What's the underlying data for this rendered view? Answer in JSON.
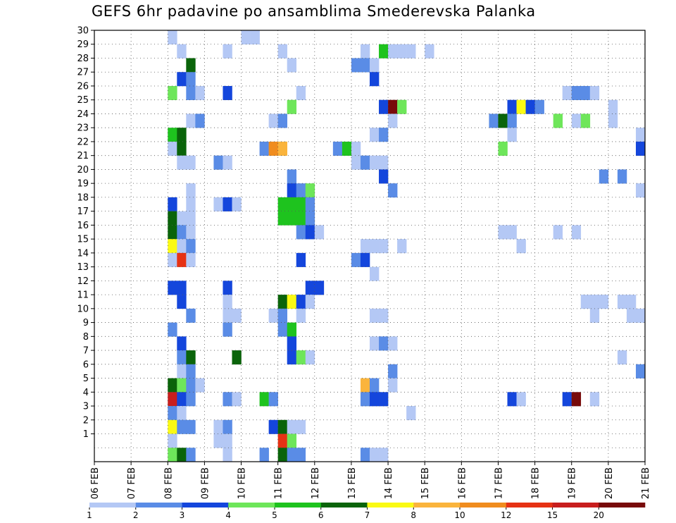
{
  "chart_data": {
    "type": "heatmap",
    "title": "GEFS 6hr padavine po ansamblima Smederevska Palanka",
    "y_members": [
      30,
      29,
      28,
      27,
      26,
      25,
      24,
      23,
      22,
      21,
      20,
      19,
      18,
      17,
      16,
      15,
      14,
      13,
      12,
      11,
      10,
      9,
      8,
      7,
      6,
      5,
      4,
      3,
      2,
      1,
      0
    ],
    "y_tick_labels": [
      "30",
      "29",
      "28",
      "27",
      "26",
      "25",
      "24",
      "23",
      "22",
      "21",
      "20",
      "19",
      "18",
      "17",
      "16",
      "15",
      "14",
      "13",
      "12",
      "11",
      "10",
      "9",
      "8",
      "7",
      "6",
      "5",
      "4",
      "3",
      "2",
      "1"
    ],
    "x_start_date": "06 FEB",
    "x_tick_labels": [
      "06 FEB",
      "07 FEB",
      "08 FEB",
      "09 FEB",
      "10 FEB",
      "11 FEB",
      "12 FEB",
      "13 FEB",
      "14 FEB",
      "15 FEB",
      "16 FEB",
      "17 FEB",
      "18 FEB",
      "19 FEB",
      "20 FEB",
      "21 FEB"
    ],
    "steps_per_day": 4,
    "grid": true,
    "legend_position": "bottom",
    "legend_levels": [
      1,
      2,
      3,
      4,
      5,
      6,
      7,
      8,
      10,
      12,
      15,
      20
    ],
    "legend_labels": [
      "1",
      "2",
      "3",
      "4",
      "5",
      "6",
      "7",
      "8",
      "10",
      "12",
      "15",
      "20"
    ],
    "colors": [
      "#b4c8f5",
      "#5a8ce6",
      "#1446dc",
      "#6ee65a",
      "#1ec31e",
      "#0a640a",
      "#fafa14",
      "#fab43c",
      "#f08c1e",
      "#e63214",
      "#c81e1e",
      "#780a0a"
    ],
    "cells": [
      {
        "member": 30,
        "step": 8,
        "level": 1
      },
      {
        "member": 30,
        "step": 16,
        "level": 1
      },
      {
        "member": 30,
        "step": 17,
        "level": 1
      },
      {
        "member": 29,
        "step": 9,
        "level": 1
      },
      {
        "member": 29,
        "step": 14,
        "level": 1
      },
      {
        "member": 29,
        "step": 20,
        "level": 1
      },
      {
        "member": 29,
        "step": 29,
        "level": 1
      },
      {
        "member": 29,
        "step": 31,
        "level": 5
      },
      {
        "member": 29,
        "step": 32,
        "level": 1
      },
      {
        "member": 29,
        "step": 33,
        "level": 1
      },
      {
        "member": 29,
        "step": 34,
        "level": 1
      },
      {
        "member": 29,
        "step": 36,
        "level": 1
      },
      {
        "member": 28,
        "step": 10,
        "level": 6
      },
      {
        "member": 28,
        "step": 21,
        "level": 1
      },
      {
        "member": 28,
        "step": 28,
        "level": 2
      },
      {
        "member": 28,
        "step": 29,
        "level": 2
      },
      {
        "member": 28,
        "step": 30,
        "level": 1
      },
      {
        "member": 27,
        "step": 9,
        "level": 3
      },
      {
        "member": 27,
        "step": 10,
        "level": 2
      },
      {
        "member": 27,
        "step": 30,
        "level": 3
      },
      {
        "member": 26,
        "step": 8,
        "level": 4
      },
      {
        "member": 26,
        "step": 10,
        "level": 2
      },
      {
        "member": 26,
        "step": 11,
        "level": 1
      },
      {
        "member": 26,
        "step": 14,
        "level": 3
      },
      {
        "member": 26,
        "step": 22,
        "level": 1
      },
      {
        "member": 26,
        "step": 51,
        "level": 1
      },
      {
        "member": 26,
        "step": 52,
        "level": 2
      },
      {
        "member": 26,
        "step": 53,
        "level": 2
      },
      {
        "member": 26,
        "step": 54,
        "level": 1
      },
      {
        "member": 25,
        "step": 21,
        "level": 4
      },
      {
        "member": 25,
        "step": 31,
        "level": 3
      },
      {
        "member": 25,
        "step": 32,
        "level": 12
      },
      {
        "member": 25,
        "step": 33,
        "level": 4
      },
      {
        "member": 25,
        "step": 45,
        "level": 3
      },
      {
        "member": 25,
        "step": 46,
        "level": 7
      },
      {
        "member": 25,
        "step": 47,
        "level": 3
      },
      {
        "member": 25,
        "step": 48,
        "level": 2
      },
      {
        "member": 25,
        "step": 56,
        "level": 1
      },
      {
        "member": 24,
        "step": 10,
        "level": 1
      },
      {
        "member": 24,
        "step": 11,
        "level": 2
      },
      {
        "member": 24,
        "step": 19,
        "level": 1
      },
      {
        "member": 24,
        "step": 20,
        "level": 2
      },
      {
        "member": 24,
        "step": 32,
        "level": 1
      },
      {
        "member": 24,
        "step": 43,
        "level": 2
      },
      {
        "member": 24,
        "step": 44,
        "level": 6
      },
      {
        "member": 24,
        "step": 45,
        "level": 2
      },
      {
        "member": 24,
        "step": 50,
        "level": 4
      },
      {
        "member": 24,
        "step": 52,
        "level": 1
      },
      {
        "member": 24,
        "step": 53,
        "level": 4
      },
      {
        "member": 24,
        "step": 56,
        "level": 1
      },
      {
        "member": 23,
        "step": 8,
        "level": 5
      },
      {
        "member": 23,
        "step": 9,
        "level": 6
      },
      {
        "member": 23,
        "step": 30,
        "level": 1
      },
      {
        "member": 23,
        "step": 31,
        "level": 2
      },
      {
        "member": 23,
        "step": 45,
        "level": 1
      },
      {
        "member": 23,
        "step": 59,
        "level": 1
      },
      {
        "member": 22,
        "step": 8,
        "level": 1
      },
      {
        "member": 22,
        "step": 9,
        "level": 6
      },
      {
        "member": 22,
        "step": 18,
        "level": 2
      },
      {
        "member": 22,
        "step": 19,
        "level": 9
      },
      {
        "member": 22,
        "step": 20,
        "level": 8
      },
      {
        "member": 22,
        "step": 26,
        "level": 2
      },
      {
        "member": 22,
        "step": 27,
        "level": 5
      },
      {
        "member": 22,
        "step": 28,
        "level": 1
      },
      {
        "member": 22,
        "step": 44,
        "level": 4
      },
      {
        "member": 22,
        "step": 59,
        "level": 3
      },
      {
        "member": 21,
        "step": 9,
        "level": 1
      },
      {
        "member": 21,
        "step": 10,
        "level": 1
      },
      {
        "member": 21,
        "step": 13,
        "level": 2
      },
      {
        "member": 21,
        "step": 14,
        "level": 1
      },
      {
        "member": 21,
        "step": 28,
        "level": 1
      },
      {
        "member": 21,
        "step": 29,
        "level": 2
      },
      {
        "member": 21,
        "step": 30,
        "level": 1
      },
      {
        "member": 21,
        "step": 31,
        "level": 1
      },
      {
        "member": 20,
        "step": 21,
        "level": 2
      },
      {
        "member": 20,
        "step": 31,
        "level": 3
      },
      {
        "member": 20,
        "step": 55,
        "level": 2
      },
      {
        "member": 20,
        "step": 57,
        "level": 2
      },
      {
        "member": 19,
        "step": 10,
        "level": 1
      },
      {
        "member": 19,
        "step": 21,
        "level": 3
      },
      {
        "member": 19,
        "step": 22,
        "level": 2
      },
      {
        "member": 19,
        "step": 23,
        "level": 4
      },
      {
        "member": 19,
        "step": 32,
        "level": 2
      },
      {
        "member": 19,
        "step": 59,
        "level": 1
      },
      {
        "member": 18,
        "step": 8,
        "level": 3
      },
      {
        "member": 18,
        "step": 10,
        "level": 1
      },
      {
        "member": 18,
        "step": 13,
        "level": 1
      },
      {
        "member": 18,
        "step": 14,
        "level": 3
      },
      {
        "member": 18,
        "step": 15,
        "level": 1
      },
      {
        "member": 18,
        "step": 20,
        "level": 5
      },
      {
        "member": 18,
        "step": 21,
        "level": 5
      },
      {
        "member": 18,
        "step": 22,
        "level": 5
      },
      {
        "member": 18,
        "step": 23,
        "level": 2
      },
      {
        "member": 17,
        "step": 8,
        "level": 6
      },
      {
        "member": 17,
        "step": 9,
        "level": 1
      },
      {
        "member": 17,
        "step": 10,
        "level": 1
      },
      {
        "member": 17,
        "step": 20,
        "level": 5
      },
      {
        "member": 17,
        "step": 21,
        "level": 5
      },
      {
        "member": 17,
        "step": 22,
        "level": 5
      },
      {
        "member": 17,
        "step": 23,
        "level": 2
      },
      {
        "member": 16,
        "step": 8,
        "level": 6
      },
      {
        "member": 16,
        "step": 9,
        "level": 2
      },
      {
        "member": 16,
        "step": 10,
        "level": 1
      },
      {
        "member": 16,
        "step": 22,
        "level": 2
      },
      {
        "member": 16,
        "step": 23,
        "level": 3
      },
      {
        "member": 16,
        "step": 24,
        "level": 1
      },
      {
        "member": 16,
        "step": 44,
        "level": 1
      },
      {
        "member": 16,
        "step": 45,
        "level": 1
      },
      {
        "member": 16,
        "step": 50,
        "level": 1
      },
      {
        "member": 16,
        "step": 52,
        "level": 1
      },
      {
        "member": 15,
        "step": 8,
        "level": 7
      },
      {
        "member": 15,
        "step": 9,
        "level": 1
      },
      {
        "member": 15,
        "step": 10,
        "level": 2
      },
      {
        "member": 15,
        "step": 29,
        "level": 1
      },
      {
        "member": 15,
        "step": 30,
        "level": 1
      },
      {
        "member": 15,
        "step": 31,
        "level": 1
      },
      {
        "member": 15,
        "step": 33,
        "level": 1
      },
      {
        "member": 15,
        "step": 46,
        "level": 1
      },
      {
        "member": 14,
        "step": 8,
        "level": 1
      },
      {
        "member": 14,
        "step": 9,
        "level": 10
      },
      {
        "member": 14,
        "step": 10,
        "level": 1
      },
      {
        "member": 14,
        "step": 22,
        "level": 3
      },
      {
        "member": 14,
        "step": 28,
        "level": 2
      },
      {
        "member": 14,
        "step": 29,
        "level": 3
      },
      {
        "member": 13,
        "step": 30,
        "level": 1
      },
      {
        "member": 12,
        "step": 8,
        "level": 3
      },
      {
        "member": 12,
        "step": 9,
        "level": 3
      },
      {
        "member": 12,
        "step": 14,
        "level": 3
      },
      {
        "member": 12,
        "step": 23,
        "level": 3
      },
      {
        "member": 12,
        "step": 24,
        "level": 3
      },
      {
        "member": 11,
        "step": 9,
        "level": 3
      },
      {
        "member": 11,
        "step": 14,
        "level": 1
      },
      {
        "member": 11,
        "step": 20,
        "level": 6
      },
      {
        "member": 11,
        "step": 21,
        "level": 7
      },
      {
        "member": 11,
        "step": 22,
        "level": 3
      },
      {
        "member": 11,
        "step": 23,
        "level": 1
      },
      {
        "member": 11,
        "step": 53,
        "level": 1
      },
      {
        "member": 11,
        "step": 54,
        "level": 1
      },
      {
        "member": 11,
        "step": 55,
        "level": 1
      },
      {
        "member": 11,
        "step": 57,
        "level": 1
      },
      {
        "member": 11,
        "step": 58,
        "level": 1
      },
      {
        "member": 10,
        "step": 10,
        "level": 2
      },
      {
        "member": 10,
        "step": 14,
        "level": 1
      },
      {
        "member": 10,
        "step": 15,
        "level": 1
      },
      {
        "member": 10,
        "step": 19,
        "level": 1
      },
      {
        "member": 10,
        "step": 20,
        "level": 2
      },
      {
        "member": 10,
        "step": 22,
        "level": 1
      },
      {
        "member": 10,
        "step": 30,
        "level": 1
      },
      {
        "member": 10,
        "step": 31,
        "level": 1
      },
      {
        "member": 10,
        "step": 54,
        "level": 1
      },
      {
        "member": 10,
        "step": 58,
        "level": 1
      },
      {
        "member": 10,
        "step": 59,
        "level": 1
      },
      {
        "member": 9,
        "step": 8,
        "level": 2
      },
      {
        "member": 9,
        "step": 14,
        "level": 2
      },
      {
        "member": 9,
        "step": 20,
        "level": 2
      },
      {
        "member": 9,
        "step": 21,
        "level": 5
      },
      {
        "member": 8,
        "step": 9,
        "level": 3
      },
      {
        "member": 8,
        "step": 21,
        "level": 3
      },
      {
        "member": 8,
        "step": 30,
        "level": 1
      },
      {
        "member": 8,
        "step": 31,
        "level": 2
      },
      {
        "member": 8,
        "step": 32,
        "level": 1
      },
      {
        "member": 7,
        "step": 9,
        "level": 2
      },
      {
        "member": 7,
        "step": 10,
        "level": 6
      },
      {
        "member": 7,
        "step": 15,
        "level": 6
      },
      {
        "member": 7,
        "step": 21,
        "level": 3
      },
      {
        "member": 7,
        "step": 22,
        "level": 4
      },
      {
        "member": 7,
        "step": 23,
        "level": 1
      },
      {
        "member": 7,
        "step": 57,
        "level": 1
      },
      {
        "member": 6,
        "step": 9,
        "level": 1
      },
      {
        "member": 6,
        "step": 10,
        "level": 2
      },
      {
        "member": 6,
        "step": 32,
        "level": 2
      },
      {
        "member": 6,
        "step": 59,
        "level": 2
      },
      {
        "member": 5,
        "step": 8,
        "level": 6
      },
      {
        "member": 5,
        "step": 9,
        "level": 4
      },
      {
        "member": 5,
        "step": 10,
        "level": 2
      },
      {
        "member": 5,
        "step": 11,
        "level": 1
      },
      {
        "member": 5,
        "step": 29,
        "level": 8
      },
      {
        "member": 5,
        "step": 30,
        "level": 2
      },
      {
        "member": 5,
        "step": 32,
        "level": 1
      },
      {
        "member": 4,
        "step": 8,
        "level": 11
      },
      {
        "member": 4,
        "step": 9,
        "level": 3
      },
      {
        "member": 4,
        "step": 10,
        "level": 2
      },
      {
        "member": 4,
        "step": 14,
        "level": 2
      },
      {
        "member": 4,
        "step": 15,
        "level": 1
      },
      {
        "member": 4,
        "step": 18,
        "level": 5
      },
      {
        "member": 4,
        "step": 19,
        "level": 2
      },
      {
        "member": 4,
        "step": 29,
        "level": 2
      },
      {
        "member": 4,
        "step": 30,
        "level": 3
      },
      {
        "member": 4,
        "step": 31,
        "level": 3
      },
      {
        "member": 4,
        "step": 45,
        "level": 3
      },
      {
        "member": 4,
        "step": 46,
        "level": 1
      },
      {
        "member": 4,
        "step": 51,
        "level": 3
      },
      {
        "member": 4,
        "step": 52,
        "level": 12
      },
      {
        "member": 4,
        "step": 54,
        "level": 1
      },
      {
        "member": 3,
        "step": 8,
        "level": 2
      },
      {
        "member": 3,
        "step": 9,
        "level": 1
      },
      {
        "member": 3,
        "step": 34,
        "level": 1
      },
      {
        "member": 2,
        "step": 8,
        "level": 7
      },
      {
        "member": 2,
        "step": 9,
        "level": 2
      },
      {
        "member": 2,
        "step": 10,
        "level": 2
      },
      {
        "member": 2,
        "step": 13,
        "level": 1
      },
      {
        "member": 2,
        "step": 14,
        "level": 2
      },
      {
        "member": 2,
        "step": 19,
        "level": 3
      },
      {
        "member": 2,
        "step": 20,
        "level": 6
      },
      {
        "member": 2,
        "step": 21,
        "level": 1
      },
      {
        "member": 2,
        "step": 22,
        "level": 1
      },
      {
        "member": 1,
        "step": 8,
        "level": 1
      },
      {
        "member": 1,
        "step": 13,
        "level": 1
      },
      {
        "member": 1,
        "step": 14,
        "level": 1
      },
      {
        "member": 1,
        "step": 20,
        "level": 10
      },
      {
        "member": 1,
        "step": 21,
        "level": 4
      },
      {
        "member": 0,
        "step": 8,
        "level": 4
      },
      {
        "member": 0,
        "step": 9,
        "level": 6
      },
      {
        "member": 0,
        "step": 10,
        "level": 2
      },
      {
        "member": 0,
        "step": 14,
        "level": 1
      },
      {
        "member": 0,
        "step": 18,
        "level": 2
      },
      {
        "member": 0,
        "step": 20,
        "level": 6
      },
      {
        "member": 0,
        "step": 21,
        "level": 2
      },
      {
        "member": 0,
        "step": 22,
        "level": 2
      },
      {
        "member": 0,
        "step": 29,
        "level": 2
      },
      {
        "member": 0,
        "step": 30,
        "level": 1
      },
      {
        "member": 0,
        "step": 31,
        "level": 1
      }
    ]
  }
}
